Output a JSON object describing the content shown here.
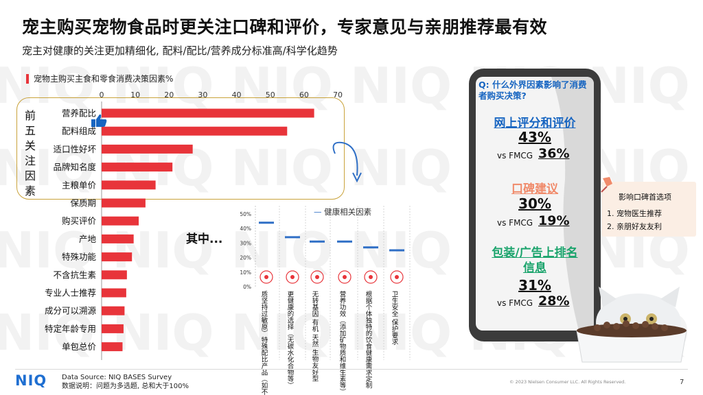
{
  "header": {
    "title": "宠主购买宠物食品时更关注口碑和评价，专家意见与亲朋推荐最有效",
    "subtitle": "宠主对健康的关注更加精细化, 配料/配比/营养成分标准高/科学化趋势"
  },
  "chart_data": [
    {
      "type": "bar",
      "orientation": "horizontal",
      "title": "宠物主购买主食和零食消费决策因素%",
      "xlim": [
        0,
        70
      ],
      "xticks": [
        0,
        10,
        20,
        30,
        40,
        50,
        60,
        70
      ],
      "categories": [
        "营养配比",
        "配料组成",
        "适口性好坏",
        "品牌知名度",
        "主粮单价",
        "保质期",
        "购买评价",
        "产地",
        "特殊功能",
        "不含抗生素",
        "专业人士推荐",
        "成分可以溯源",
        "特定年龄专用",
        "单包总价"
      ],
      "values": [
        63,
        55,
        27,
        21,
        16,
        13,
        11,
        9.5,
        9,
        7.5,
        7.3,
        6.8,
        6.5,
        6.2
      ],
      "color": "#e8343a",
      "annotation": "前五关注因素"
    },
    {
      "type": "scatter",
      "marker": "dash",
      "title": "健康相关因素",
      "ylim": [
        0,
        50
      ],
      "yticks": [
        "0%",
        "10%",
        "20%",
        "30%",
        "40%",
        "50%"
      ],
      "categories": [
        "质坚持过敏原）特殊配比产品（如不含鉄",
        "更健康的选择（无碳水化合物等）",
        "无转基因 有机 天然 生物友好型",
        "营养功效（添加矿物质和维生素等）",
        "根据个体独特的饮食健康需求定制",
        "卫生安全 保护要求"
      ],
      "values": [
        44,
        34,
        31,
        31,
        27,
        25
      ],
      "color": "#2f6fc6"
    }
  ],
  "top5_label": "前五关注因素",
  "inset_label": "其中...",
  "phone": {
    "question": "Q: 什么外界因素影响了消费者购买决策?",
    "blocks": [
      {
        "title": "网上评分和评价",
        "pct": "43%",
        "vs_label": "vs FMCG",
        "vs_value": "36%",
        "color": "#1765c1"
      },
      {
        "title": "口碑建议",
        "pct": "30%",
        "vs_label": "vs FMCG",
        "vs_value": "19%",
        "color": "#f08a6a"
      },
      {
        "title": "包装/广告上排名信息",
        "pct": "31%",
        "vs_label": "vs FMCG",
        "vs_value": "28%",
        "color": "#19a36b"
      }
    ]
  },
  "note": {
    "title": "影响口碑首选项",
    "items": [
      "1.   宠物医生推荐",
      "2.   亲朋好友友利"
    ]
  },
  "footer": {
    "logo": "NIQ",
    "source": "Data Source: NIQ BASES Survey",
    "note": "数据说明：问题为多选题, 总和大于100%",
    "copyright": "© 2023 Nielsen Consumer LLC. All Rights Reserved.",
    "page": "7"
  }
}
